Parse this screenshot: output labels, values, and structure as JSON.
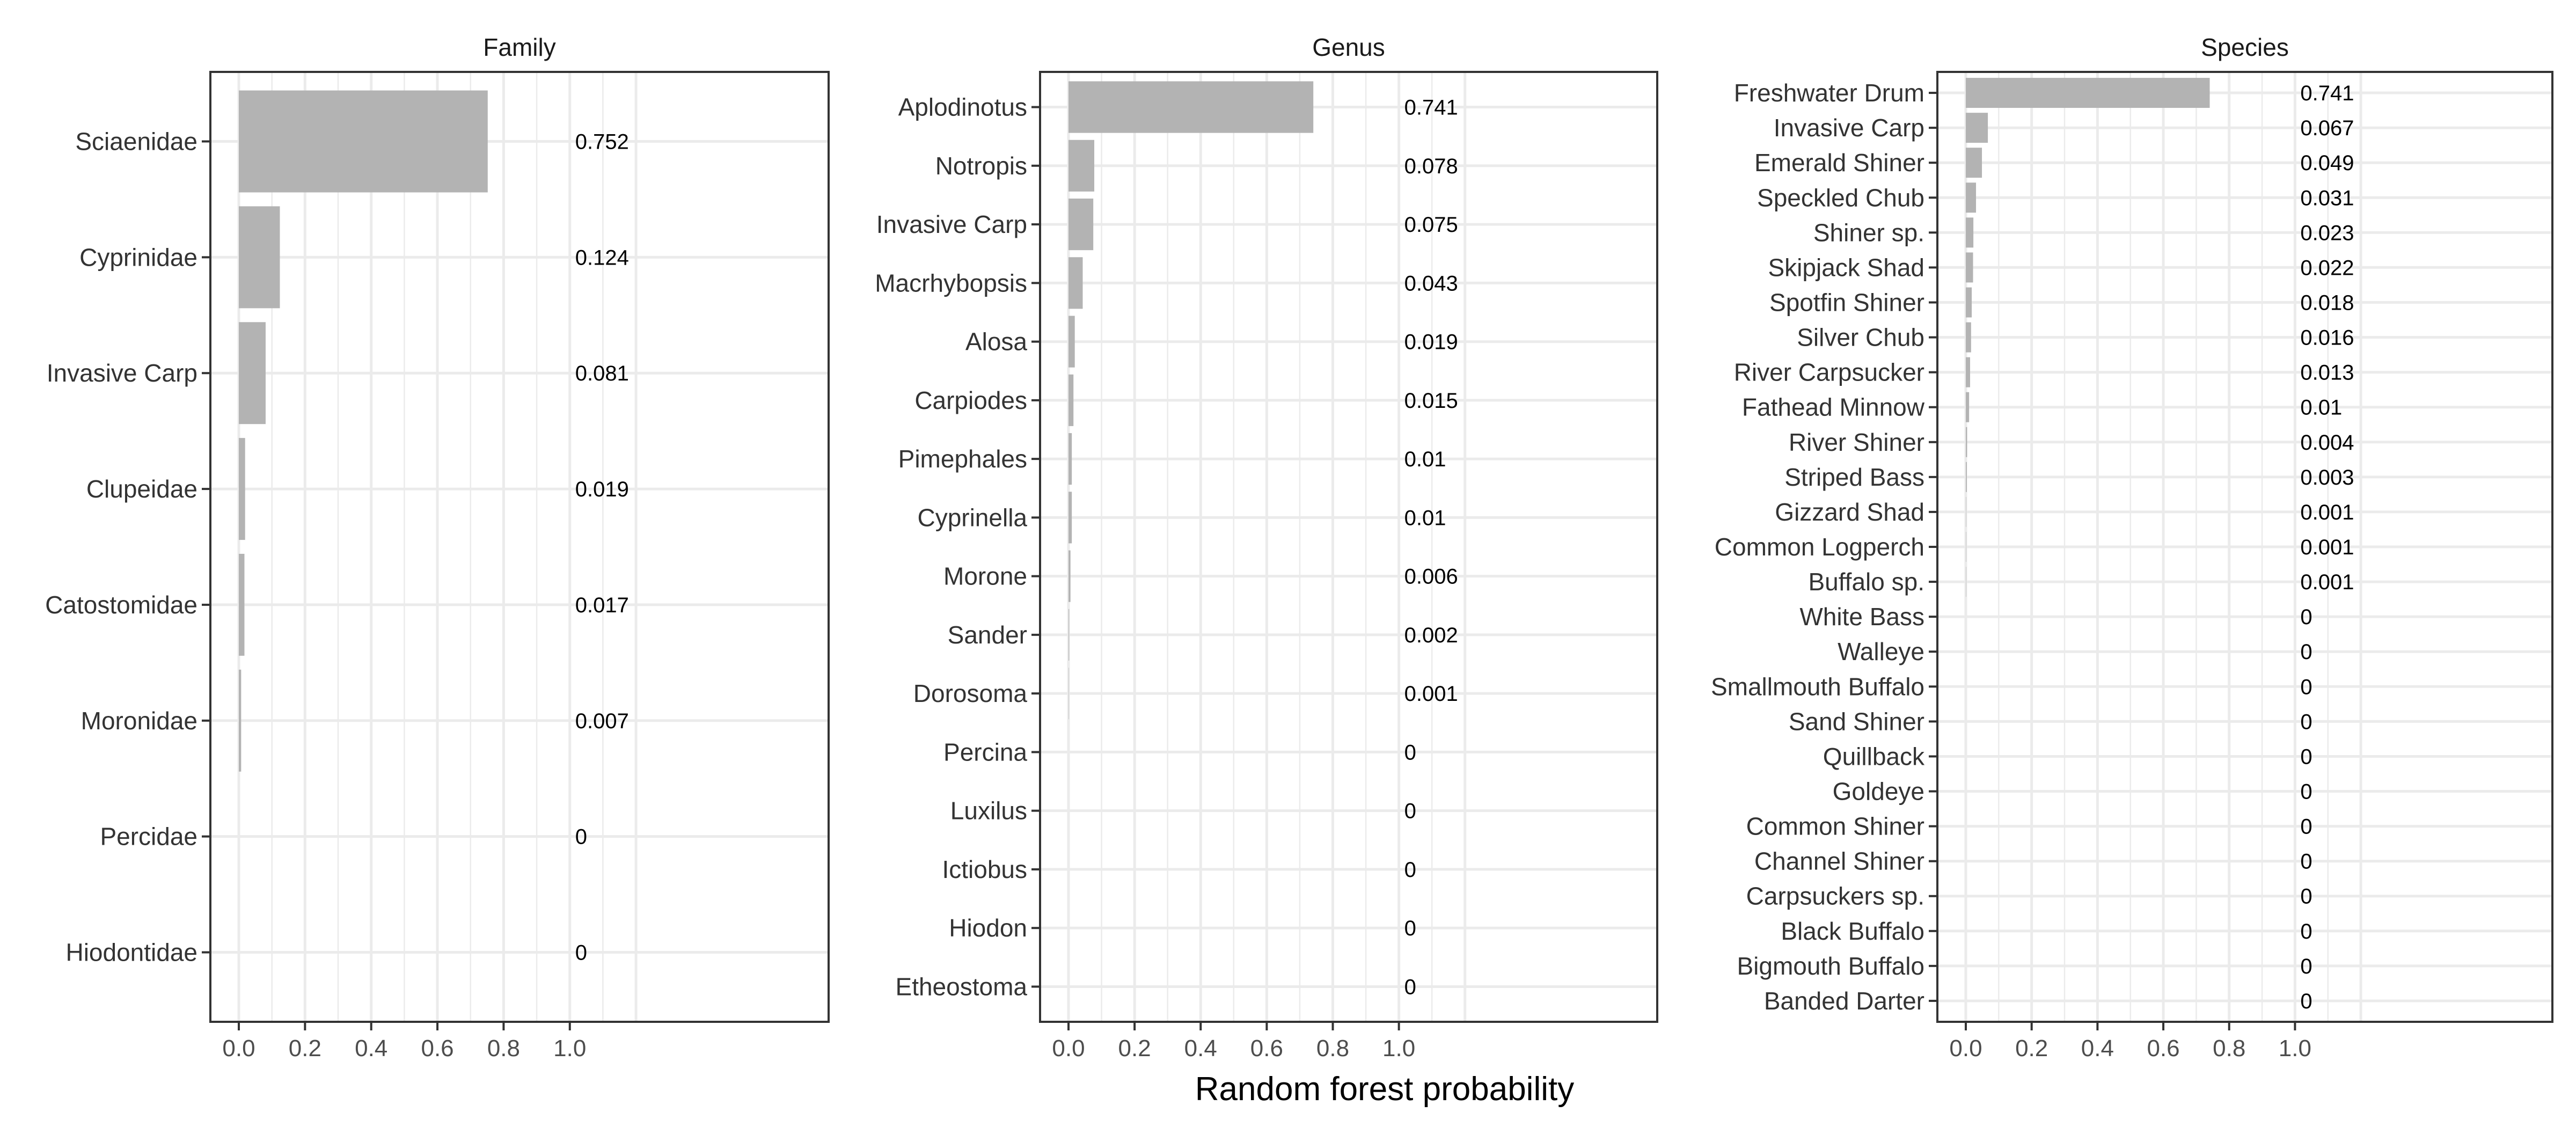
{
  "chart_data": [
    {
      "type": "bar",
      "orientation": "horizontal",
      "title": "Family",
      "categories": [
        "Sciaenidae",
        "Cyprinidae",
        "Invasive Carp",
        "Clupeidae",
        "Catostomidae",
        "Moronidae",
        "Percidae",
        "Hiodontidae"
      ],
      "values": [
        0.752,
        0.124,
        0.081,
        0.019,
        0.017,
        0.007,
        0,
        0
      ],
      "value_labels": [
        "0.752",
        "0.124",
        "0.081",
        "0.019",
        "0.017",
        "0.007",
        "0",
        "0"
      ],
      "xlim": [
        0,
        1.25
      ],
      "xticks": [
        0.0,
        0.2,
        0.4,
        0.6,
        0.8,
        1.0
      ],
      "xtick_labels": [
        "0.0",
        "0.2",
        "0.4",
        "0.6",
        "0.8",
        "1.0"
      ],
      "grid": true,
      "bar_color": "#b3b3b3"
    },
    {
      "type": "bar",
      "orientation": "horizontal",
      "title": "Genus",
      "categories": [
        "Aplodinotus",
        "Notropis",
        "Invasive Carp",
        "Macrhybopsis",
        "Alosa",
        "Carpiodes",
        "Pimephales",
        "Cyprinella",
        "Morone",
        "Sander",
        "Dorosoma",
        "Percina",
        "Luxilus ",
        "Ictiobus",
        "Hiodon",
        "Etheostoma"
      ],
      "values": [
        0.741,
        0.078,
        0.075,
        0.043,
        0.019,
        0.015,
        0.01,
        0.01,
        0.006,
        0.002,
        0.001,
        0,
        0,
        0,
        0,
        0
      ],
      "value_labels": [
        "0.741",
        "0.078",
        "0.075",
        "0.043",
        "0.019",
        "0.015",
        "0.01",
        "0.01",
        "0.006",
        "0.002",
        "0.001",
        "0",
        "0",
        "0",
        "0",
        "0"
      ],
      "xlim": [
        0,
        1.25
      ],
      "xticks": [
        0.0,
        0.2,
        0.4,
        0.6,
        0.8,
        1.0
      ],
      "xtick_labels": [
        "0.0",
        "0.2",
        "0.4",
        "0.6",
        "0.8",
        "1.0"
      ],
      "grid": true,
      "bar_color": "#b3b3b3"
    },
    {
      "type": "bar",
      "orientation": "horizontal",
      "title": "Species",
      "categories": [
        "Freshwater Drum",
        "Invasive Carp",
        "Emerald Shiner",
        "Speckled Chub",
        "Shiner sp.",
        "Skipjack Shad",
        "Spotfin Shiner",
        "Silver Chub",
        "River Carpsucker",
        "Fathead Minnow",
        "River Shiner",
        "Striped Bass",
        "Gizzard Shad",
        "Common Logperch",
        "Buffalo sp.",
        "White Bass",
        "Walleye",
        "Smallmouth Buffalo",
        "Sand Shiner",
        "Quillback",
        "Goldeye",
        "Common Shiner",
        "Channel Shiner",
        "Carpsuckers sp.",
        "Black Buffalo",
        "Bigmouth Buffalo",
        "Banded Darter"
      ],
      "values": [
        0.741,
        0.067,
        0.049,
        0.031,
        0.023,
        0.022,
        0.018,
        0.016,
        0.013,
        0.01,
        0.004,
        0.003,
        0.001,
        0.001,
        0.001,
        0,
        0,
        0,
        0,
        0,
        0,
        0,
        0,
        0,
        0,
        0,
        0
      ],
      "value_labels": [
        "0.741",
        "0.067",
        "0.049",
        "0.031",
        "0.023",
        "0.022",
        "0.018",
        "0.016",
        "0.013",
        "0.01",
        "0.004",
        "0.003",
        "0.001",
        "0.001",
        "0.001",
        "0",
        "0",
        "0",
        "0",
        "0",
        "0",
        "0",
        "0",
        "0",
        "0",
        "0",
        "0"
      ],
      "xlim": [
        0,
        1.25
      ],
      "xticks": [
        0.0,
        0.2,
        0.4,
        0.6,
        0.8,
        1.0
      ],
      "xtick_labels": [
        "0.0",
        "0.2",
        "0.4",
        "0.6",
        "0.8",
        "1.0"
      ],
      "grid": true,
      "bar_color": "#b3b3b3"
    }
  ],
  "xlabel": "Random forest probability"
}
